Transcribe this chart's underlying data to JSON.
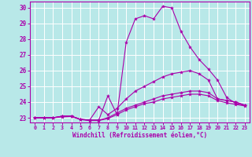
{
  "xlabel": "Windchill (Refroidissement éolien,°C)",
  "bg_color": "#b8e8e8",
  "line_color": "#aa00aa",
  "ylim": [
    22.7,
    30.4
  ],
  "xlim": [
    -0.5,
    23.5
  ],
  "xticks": [
    0,
    1,
    2,
    3,
    4,
    5,
    6,
    7,
    8,
    9,
    10,
    11,
    12,
    13,
    14,
    15,
    16,
    17,
    18,
    19,
    20,
    21,
    22,
    23
  ],
  "yticks": [
    23,
    24,
    25,
    26,
    27,
    28,
    29,
    30
  ],
  "series": [
    [
      23.0,
      23.0,
      23.0,
      23.1,
      23.1,
      22.9,
      22.85,
      22.85,
      24.4,
      23.2,
      27.8,
      29.3,
      29.5,
      29.3,
      30.1,
      30.0,
      28.5,
      27.5,
      26.7,
      26.1,
      25.4,
      24.3,
      23.9,
      23.8
    ],
    [
      23.0,
      23.0,
      23.0,
      23.1,
      23.1,
      22.9,
      22.85,
      23.7,
      23.2,
      23.6,
      24.2,
      24.7,
      25.0,
      25.3,
      25.6,
      25.8,
      25.9,
      26.0,
      25.8,
      25.4,
      24.2,
      24.1,
      24.0,
      23.8
    ],
    [
      23.0,
      23.0,
      23.0,
      23.1,
      23.1,
      22.9,
      22.85,
      22.85,
      23.0,
      23.3,
      23.6,
      23.8,
      24.0,
      24.2,
      24.4,
      24.5,
      24.6,
      24.7,
      24.7,
      24.6,
      24.2,
      24.1,
      24.0,
      23.8
    ],
    [
      23.0,
      23.0,
      23.0,
      23.05,
      23.08,
      22.88,
      22.82,
      22.82,
      22.95,
      23.2,
      23.5,
      23.7,
      23.9,
      24.0,
      24.2,
      24.3,
      24.4,
      24.5,
      24.5,
      24.4,
      24.1,
      23.95,
      23.85,
      23.75
    ]
  ]
}
